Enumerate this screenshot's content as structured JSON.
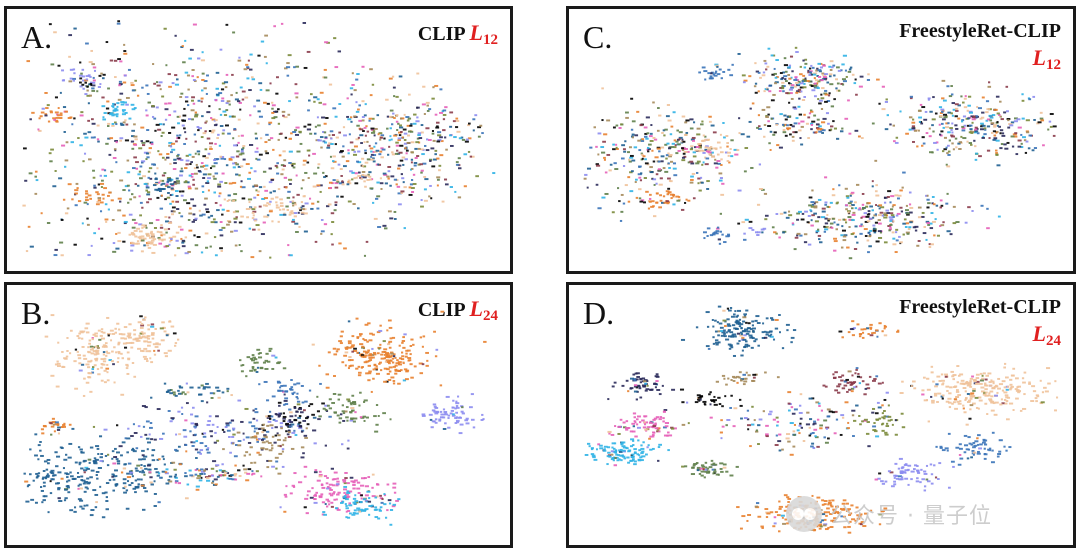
{
  "panels": {
    "a": {
      "label": "A.",
      "title": "CLIP",
      "layer": "L",
      "layer_sub": "12"
    },
    "b": {
      "label": "B.",
      "title": "CLIP",
      "layer": "L",
      "layer_sub": "24"
    },
    "c": {
      "label": "C.",
      "title": "FreestyleRet-CLIP",
      "layer": "L",
      "layer_sub": "12"
    },
    "d": {
      "label": "D.",
      "title": "FreestyleRet-CLIP",
      "layer": "L",
      "layer_sub": "24"
    }
  },
  "watermark": {
    "text": "公众号 · 量子位"
  },
  "colors": [
    "#f0c29a",
    "#e8812f",
    "#3a73b8",
    "#1f5f91",
    "#8c8cf0",
    "#e65fb8",
    "#2fb3e6",
    "#5f7f4a",
    "#2a2a5a",
    "#000000",
    "#8a3b4a",
    "#7a8a3a",
    "#a58a5a"
  ],
  "chart_data": [
    {
      "type": "scatter",
      "panel": "a",
      "title": "CLIP L12",
      "xlim": [
        0,
        100
      ],
      "ylim": [
        0,
        100
      ],
      "axes": "hidden",
      "grid": false,
      "clusters": [
        {
          "cx": 38,
          "cy": 55,
          "sx": 22,
          "sy": 30,
          "n": 1100,
          "colors": "mixed"
        },
        {
          "cx": 79,
          "cy": 53,
          "sx": 11,
          "sy": 14,
          "n": 380,
          "colors": "mixed"
        },
        {
          "cx": 14,
          "cy": 26,
          "sx": 3,
          "sy": 3,
          "n": 30,
          "colors": [
            4
          ]
        },
        {
          "cx": 21,
          "cy": 38,
          "sx": 2,
          "sy": 3,
          "n": 35,
          "colors": [
            6
          ]
        },
        {
          "cx": 8,
          "cy": 40,
          "sx": 2,
          "sy": 2,
          "n": 25,
          "colors": [
            1
          ]
        },
        {
          "cx": 14,
          "cy": 26,
          "sx": 2,
          "sy": 2,
          "n": 15,
          "colors": [
            9
          ]
        },
        {
          "cx": 28,
          "cy": 90,
          "sx": 4,
          "sy": 3,
          "n": 70,
          "colors": [
            0
          ]
        },
        {
          "cx": 54,
          "cy": 78,
          "sx": 5,
          "sy": 5,
          "n": 50,
          "colors": [
            0
          ]
        },
        {
          "cx": 15,
          "cy": 72,
          "sx": 3,
          "sy": 3,
          "n": 30,
          "colors": [
            1
          ]
        },
        {
          "cx": 31,
          "cy": 68,
          "sx": 3,
          "sy": 3,
          "n": 30,
          "colors": [
            3
          ]
        },
        {
          "cx": 70,
          "cy": 66,
          "sx": 3,
          "sy": 2,
          "n": 25,
          "colors": [
            0
          ]
        }
      ]
    },
    {
      "type": "scatter",
      "panel": "b",
      "title": "CLIP L24",
      "xlim": [
        0,
        100
      ],
      "ylim": [
        0,
        100
      ],
      "axes": "hidden",
      "grid": false,
      "clusters": [
        {
          "cx": 17,
          "cy": 25,
          "sx": 5,
          "sy": 7,
          "n": 160,
          "colors": [
            0
          ]
        },
        {
          "cx": 27,
          "cy": 18,
          "sx": 4,
          "sy": 5,
          "n": 90,
          "colors": [
            0
          ]
        },
        {
          "cx": 75,
          "cy": 25,
          "sx": 6,
          "sy": 7,
          "n": 220,
          "colors": [
            1
          ]
        },
        {
          "cx": 90,
          "cy": 50,
          "sx": 3,
          "sy": 4,
          "n": 70,
          "colors": [
            4
          ]
        },
        {
          "cx": 8,
          "cy": 55,
          "sx": 2,
          "sy": 2,
          "n": 25,
          "colors": [
            1
          ]
        },
        {
          "cx": 13,
          "cy": 76,
          "sx": 8,
          "sy": 9,
          "n": 220,
          "colors": [
            3
          ]
        },
        {
          "cx": 26,
          "cy": 70,
          "sx": 5,
          "sy": 6,
          "n": 70,
          "colors": [
            3
          ]
        },
        {
          "cx": 43,
          "cy": 57,
          "sx": 12,
          "sy": 6,
          "n": 160,
          "colors": [
            2,
            4,
            8
          ]
        },
        {
          "cx": 57,
          "cy": 52,
          "sx": 4,
          "sy": 4,
          "n": 70,
          "colors": [
            8,
            9
          ]
        },
        {
          "cx": 69,
          "cy": 48,
          "sx": 4,
          "sy": 4,
          "n": 60,
          "colors": [
            7
          ]
        },
        {
          "cx": 49,
          "cy": 28,
          "sx": 3,
          "sy": 3,
          "n": 40,
          "colors": [
            7
          ]
        },
        {
          "cx": 37,
          "cy": 40,
          "sx": 5,
          "sy": 2,
          "n": 40,
          "colors": [
            7,
            3
          ]
        },
        {
          "cx": 66,
          "cy": 82,
          "sx": 6,
          "sy": 5,
          "n": 130,
          "colors": [
            5
          ]
        },
        {
          "cx": 72,
          "cy": 88,
          "sx": 4,
          "sy": 4,
          "n": 70,
          "colors": [
            6
          ]
        },
        {
          "cx": 40,
          "cy": 75,
          "sx": 10,
          "sy": 3,
          "n": 100,
          "colors": "mixed"
        },
        {
          "cx": 52,
          "cy": 62,
          "sx": 4,
          "sy": 5,
          "n": 50,
          "colors": [
            12
          ]
        },
        {
          "cx": 56,
          "cy": 42,
          "sx": 3,
          "sy": 5,
          "n": 40,
          "colors": [
            2
          ]
        }
      ]
    },
    {
      "type": "scatter",
      "panel": "c",
      "title": "FreestyleRet-CLIP L12",
      "xlim": [
        0,
        100
      ],
      "ylim": [
        0,
        100
      ],
      "axes": "hidden",
      "grid": false,
      "clusters": [
        {
          "cx": 18,
          "cy": 55,
          "sx": 9,
          "sy": 12,
          "n": 320,
          "colors": "mixed"
        },
        {
          "cx": 28,
          "cy": 53,
          "sx": 3,
          "sy": 3,
          "n": 40,
          "colors": [
            0
          ]
        },
        {
          "cx": 18,
          "cy": 75,
          "sx": 4,
          "sy": 2,
          "n": 40,
          "colors": [
            1
          ]
        },
        {
          "cx": 47,
          "cy": 25,
          "sx": 7,
          "sy": 6,
          "n": 220,
          "colors": "mixed"
        },
        {
          "cx": 45,
          "cy": 44,
          "sx": 6,
          "sy": 4,
          "n": 100,
          "colors": "mixed"
        },
        {
          "cx": 28,
          "cy": 22,
          "sx": 2,
          "sy": 2,
          "n": 25,
          "colors": [
            2
          ]
        },
        {
          "cx": 81,
          "cy": 44,
          "sx": 11,
          "sy": 8,
          "n": 320,
          "colors": "mixed"
        },
        {
          "cx": 59,
          "cy": 82,
          "sx": 12,
          "sy": 7,
          "n": 340,
          "colors": "mixed"
        },
        {
          "cx": 28,
          "cy": 89,
          "sx": 2,
          "sy": 2,
          "n": 20,
          "colors": [
            2
          ]
        },
        {
          "cx": 38,
          "cy": 88,
          "sx": 2,
          "sy": 1,
          "n": 10,
          "colors": [
            4
          ]
        }
      ]
    },
    {
      "type": "scatter",
      "panel": "d",
      "title": "FreestyleRet-CLIP L24",
      "xlim": [
        0,
        100
      ],
      "ylim": [
        0,
        100
      ],
      "axes": "hidden",
      "grid": false,
      "clusters": [
        {
          "cx": 34,
          "cy": 15,
          "sx": 5,
          "sy": 5,
          "n": 150,
          "colors": [
            3
          ]
        },
        {
          "cx": 60,
          "cy": 15,
          "sx": 3,
          "sy": 2,
          "n": 35,
          "colors": [
            1
          ]
        },
        {
          "cx": 83,
          "cy": 40,
          "sx": 8,
          "sy": 5,
          "n": 240,
          "colors": [
            0
          ]
        },
        {
          "cx": 13,
          "cy": 37,
          "sx": 3,
          "sy": 3,
          "n": 60,
          "colors": [
            8
          ]
        },
        {
          "cx": 27,
          "cy": 44,
          "sx": 3,
          "sy": 2,
          "n": 30,
          "colors": [
            9
          ]
        },
        {
          "cx": 14,
          "cy": 54,
          "sx": 4,
          "sy": 3,
          "n": 80,
          "colors": [
            5
          ]
        },
        {
          "cx": 9,
          "cy": 66,
          "sx": 4,
          "sy": 3,
          "n": 110,
          "colors": [
            6
          ]
        },
        {
          "cx": 27,
          "cy": 72,
          "sx": 3,
          "sy": 2,
          "n": 50,
          "colors": [
            7
          ]
        },
        {
          "cx": 57,
          "cy": 36,
          "sx": 3,
          "sy": 3,
          "n": 50,
          "colors": [
            10
          ]
        },
        {
          "cx": 45,
          "cy": 54,
          "sx": 9,
          "sy": 6,
          "n": 130,
          "colors": "mixed"
        },
        {
          "cx": 62,
          "cy": 52,
          "sx": 3,
          "sy": 3,
          "n": 40,
          "colors": [
            11
          ]
        },
        {
          "cx": 82,
          "cy": 64,
          "sx": 4,
          "sy": 3,
          "n": 60,
          "colors": [
            2
          ]
        },
        {
          "cx": 68,
          "cy": 75,
          "sx": 4,
          "sy": 3,
          "n": 70,
          "colors": [
            4
          ]
        },
        {
          "cx": 48,
          "cy": 92,
          "sx": 7,
          "sy": 4,
          "n": 220,
          "colors": [
            1
          ]
        },
        {
          "cx": 34,
          "cy": 35,
          "sx": 3,
          "sy": 2,
          "n": 30,
          "colors": [
            12
          ]
        }
      ]
    }
  ]
}
